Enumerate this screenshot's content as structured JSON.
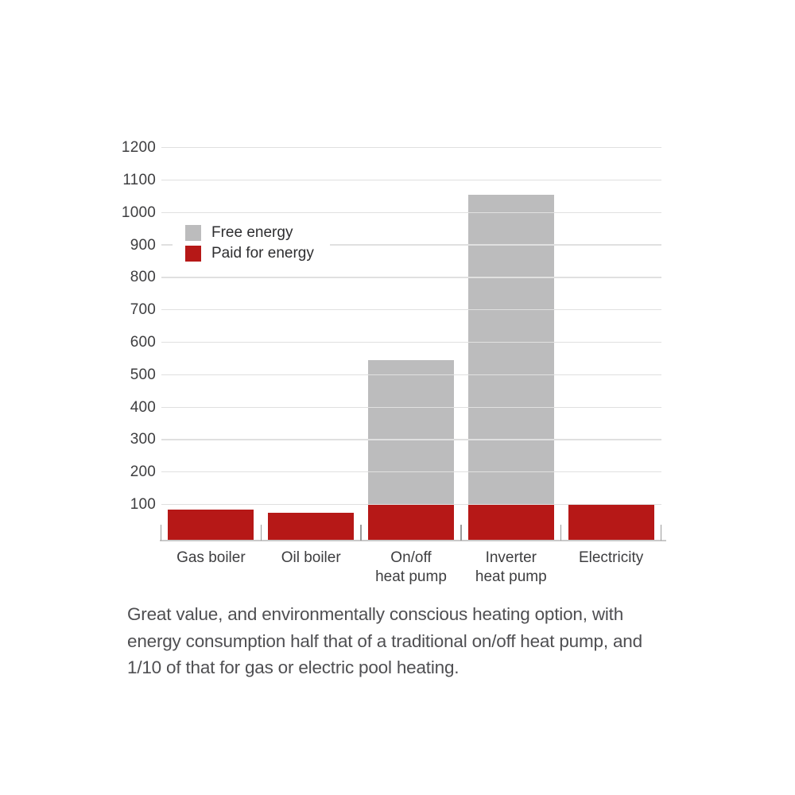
{
  "chart_data": {
    "type": "bar",
    "stacked": true,
    "title": "",
    "xlabel": "",
    "ylabel": "",
    "categories": [
      "Gas boiler",
      "Oil boiler",
      "On/off heat pump",
      "Inverter heat pump",
      "Electricity"
    ],
    "category_label_lines": [
      [
        "Gas boiler"
      ],
      [
        "Oil boiler"
      ],
      [
        "On/off",
        "heat pump"
      ],
      [
        "Inverter",
        "heat pump"
      ],
      [
        "Electricity"
      ]
    ],
    "series": [
      {
        "name": "Paid for energy",
        "color": "#b61817",
        "values": [
          85,
          75,
          100,
          100,
          100
        ]
      },
      {
        "name": "Free energy",
        "color": "#bcbcbd",
        "values": [
          0,
          0,
          445,
          955,
          0
        ]
      }
    ],
    "stacked_totals": [
      85,
      75,
      545,
      1055,
      100
    ],
    "y_ticks": [
      100,
      200,
      300,
      400,
      500,
      600,
      700,
      800,
      900,
      1000,
      1100,
      1200
    ],
    "ylim": [
      0,
      1200
    ],
    "grid": true,
    "gridline_color": "#e0e0e0",
    "legend": {
      "position": "inside-top-left",
      "items": [
        {
          "label": "Free energy",
          "color": "#bcbcbd"
        },
        {
          "label": "Paid for energy",
          "color": "#b61817"
        }
      ]
    }
  },
  "caption": {
    "text": "Great value, and environmentally conscious heating option, with energy consumption half that of a traditional on/off heat pump, and 1/10 of that for gas or electric pool heating.",
    "lines": [
      "Great value, and environmentally conscious heating option, with",
      "energy consumption half that of a traditional on/off heat pump, and",
      "1/10 of that for gas or electric pool heating."
    ]
  }
}
